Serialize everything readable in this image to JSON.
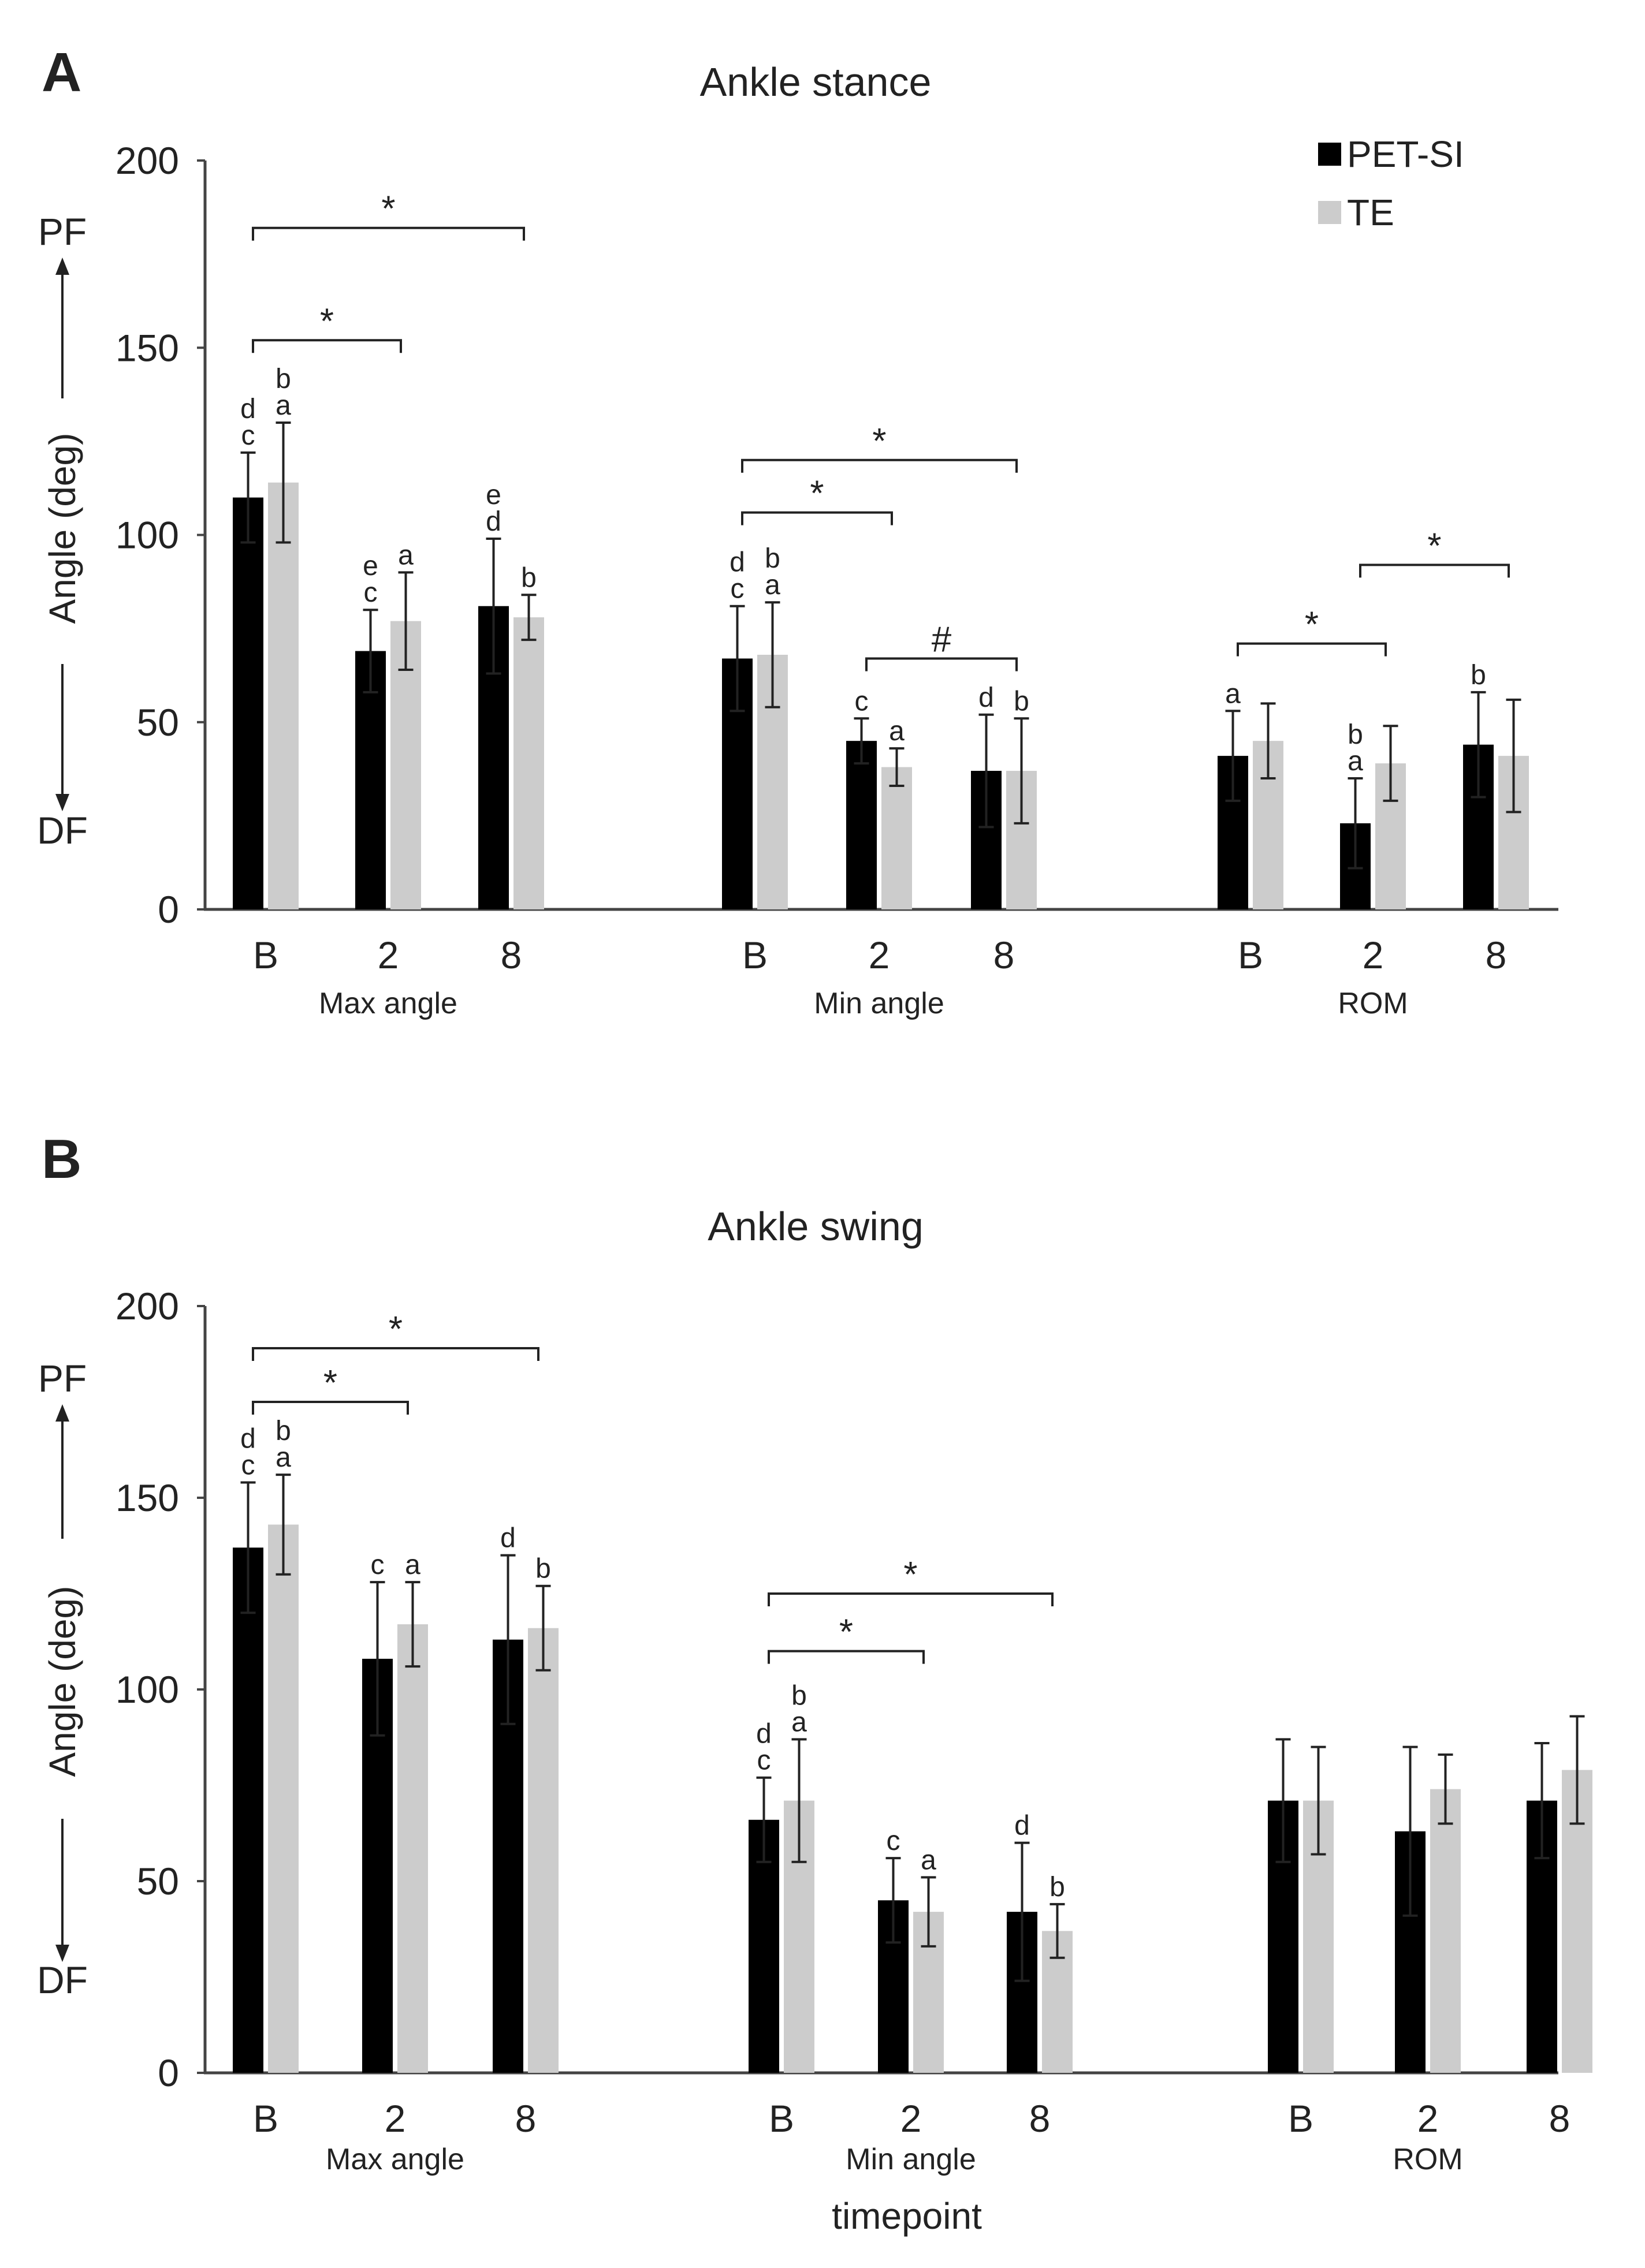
{
  "chart_data": [
    {
      "panel": "A",
      "type": "bar",
      "title": "Ankle stance",
      "ylabel": "Angle (deg)",
      "xlabel": "",
      "ylim": [
        0,
        200
      ],
      "yticks": [
        "0",
        "50",
        "100",
        "150",
        "200"
      ],
      "direction_labels": {
        "top": "PF",
        "bottom": "DF"
      },
      "groups": [
        {
          "label": "Max angle",
          "categories": [
            "B",
            "2",
            "8"
          ]
        },
        {
          "label": "Min angle",
          "categories": [
            "B",
            "2",
            "8"
          ]
        },
        {
          "label": "ROM",
          "categories": [
            "B",
            "2",
            "8"
          ]
        }
      ],
      "legend": {
        "position": "top-right",
        "entries": [
          "PET-SI",
          "TE"
        ]
      },
      "series": [
        {
          "name": "PET-SI",
          "color": "#000000",
          "values": [
            110,
            69,
            81,
            67,
            45,
            37,
            41,
            23,
            44
          ],
          "errors": [
            12,
            11,
            18,
            14,
            6,
            15,
            12,
            12,
            14
          ]
        },
        {
          "name": "TE",
          "color": "#cccccc",
          "values": [
            114,
            77,
            78,
            68,
            38,
            37,
            45,
            39,
            41
          ],
          "errors": [
            16,
            13,
            6,
            14,
            5,
            14,
            10,
            10,
            15
          ]
        }
      ],
      "letters": [
        {
          "bar": 0,
          "series": 0,
          "text": [
            "d",
            "c"
          ]
        },
        {
          "bar": 0,
          "series": 1,
          "text": [
            "b",
            "a"
          ]
        },
        {
          "bar": 1,
          "series": 0,
          "text": [
            "e",
            "c"
          ]
        },
        {
          "bar": 1,
          "series": 1,
          "text": [
            "a"
          ]
        },
        {
          "bar": 2,
          "series": 0,
          "text": [
            "e",
            "d"
          ]
        },
        {
          "bar": 2,
          "series": 1,
          "text": [
            "b"
          ]
        },
        {
          "bar": 3,
          "series": 0,
          "text": [
            "d",
            "c"
          ]
        },
        {
          "bar": 3,
          "series": 1,
          "text": [
            "b",
            "a"
          ]
        },
        {
          "bar": 4,
          "series": 0,
          "text": [
            "c"
          ]
        },
        {
          "bar": 4,
          "series": 1,
          "text": [
            "a"
          ]
        },
        {
          "bar": 5,
          "series": 0,
          "text": [
            "d"
          ]
        },
        {
          "bar": 5,
          "series": 1,
          "text": [
            "b"
          ]
        },
        {
          "bar": 6,
          "series": 0,
          "text": [
            "a"
          ]
        },
        {
          "bar": 7,
          "series": 0,
          "text": [
            "b",
            "a"
          ]
        },
        {
          "bar": 8,
          "series": 0,
          "text": [
            "b"
          ]
        }
      ],
      "brackets": [
        {
          "from": 0,
          "to": 2,
          "label": "*",
          "level": 182
        },
        {
          "from": 0,
          "to": 1,
          "label": "*",
          "level": 152
        },
        {
          "from": 3,
          "to": 5,
          "label": "*",
          "level": 120
        },
        {
          "from": 3,
          "to": 4,
          "label": "*",
          "level": 106
        },
        {
          "from": 4,
          "to": 5,
          "label": "#",
          "level": 67
        },
        {
          "from": 6,
          "to": 7,
          "label": "*",
          "level": 71
        },
        {
          "from": 7,
          "to": 8,
          "label": "*",
          "level": 92
        }
      ]
    },
    {
      "panel": "B",
      "type": "bar",
      "title": "Ankle swing",
      "ylabel": "Angle (deg)",
      "xlabel": "timepoint",
      "ylim": [
        0,
        200
      ],
      "yticks": [
        "0",
        "50",
        "100",
        "150",
        "200"
      ],
      "direction_labels": {
        "top": "PF",
        "bottom": "DF"
      },
      "groups": [
        {
          "label": "Max angle",
          "categories": [
            "B",
            "2",
            "8"
          ]
        },
        {
          "label": "Min angle",
          "categories": [
            "B",
            "2",
            "8"
          ]
        },
        {
          "label": "ROM",
          "categories": [
            "B",
            "2",
            "8"
          ]
        }
      ],
      "legend": null,
      "series": [
        {
          "name": "PET-SI",
          "color": "#000000",
          "values": [
            137,
            108,
            113,
            66,
            45,
            42,
            71,
            63,
            71
          ],
          "errors": [
            17,
            20,
            22,
            11,
            11,
            18,
            16,
            22,
            15
          ]
        },
        {
          "name": "TE",
          "color": "#cccccc",
          "values": [
            143,
            117,
            116,
            71,
            42,
            37,
            71,
            74,
            79
          ],
          "errors": [
            13,
            11,
            11,
            16,
            9,
            7,
            14,
            9,
            14
          ]
        }
      ],
      "letters": [
        {
          "bar": 0,
          "series": 0,
          "text": [
            "d",
            "c"
          ]
        },
        {
          "bar": 0,
          "series": 1,
          "text": [
            "b",
            "a"
          ]
        },
        {
          "bar": 1,
          "series": 0,
          "text": [
            "c"
          ]
        },
        {
          "bar": 1,
          "series": 1,
          "text": [
            "a"
          ]
        },
        {
          "bar": 2,
          "series": 0,
          "text": [
            "d"
          ]
        },
        {
          "bar": 2,
          "series": 1,
          "text": [
            "b"
          ]
        },
        {
          "bar": 3,
          "series": 0,
          "text": [
            "d",
            "c"
          ]
        },
        {
          "bar": 3,
          "series": 1,
          "text": [
            "b",
            "a"
          ]
        },
        {
          "bar": 4,
          "series": 0,
          "text": [
            "c"
          ]
        },
        {
          "bar": 4,
          "series": 1,
          "text": [
            "a"
          ]
        },
        {
          "bar": 5,
          "series": 0,
          "text": [
            "d"
          ]
        },
        {
          "bar": 5,
          "series": 1,
          "text": [
            "b"
          ]
        }
      ],
      "brackets": [
        {
          "from": 0,
          "to": 2,
          "label": "*",
          "level": 189
        },
        {
          "from": 0,
          "to": 1,
          "label": "*",
          "level": 175
        },
        {
          "from": 3,
          "to": 5,
          "label": "*",
          "level": 125
        },
        {
          "from": 3,
          "to": 4,
          "label": "*",
          "level": 110
        }
      ]
    }
  ]
}
